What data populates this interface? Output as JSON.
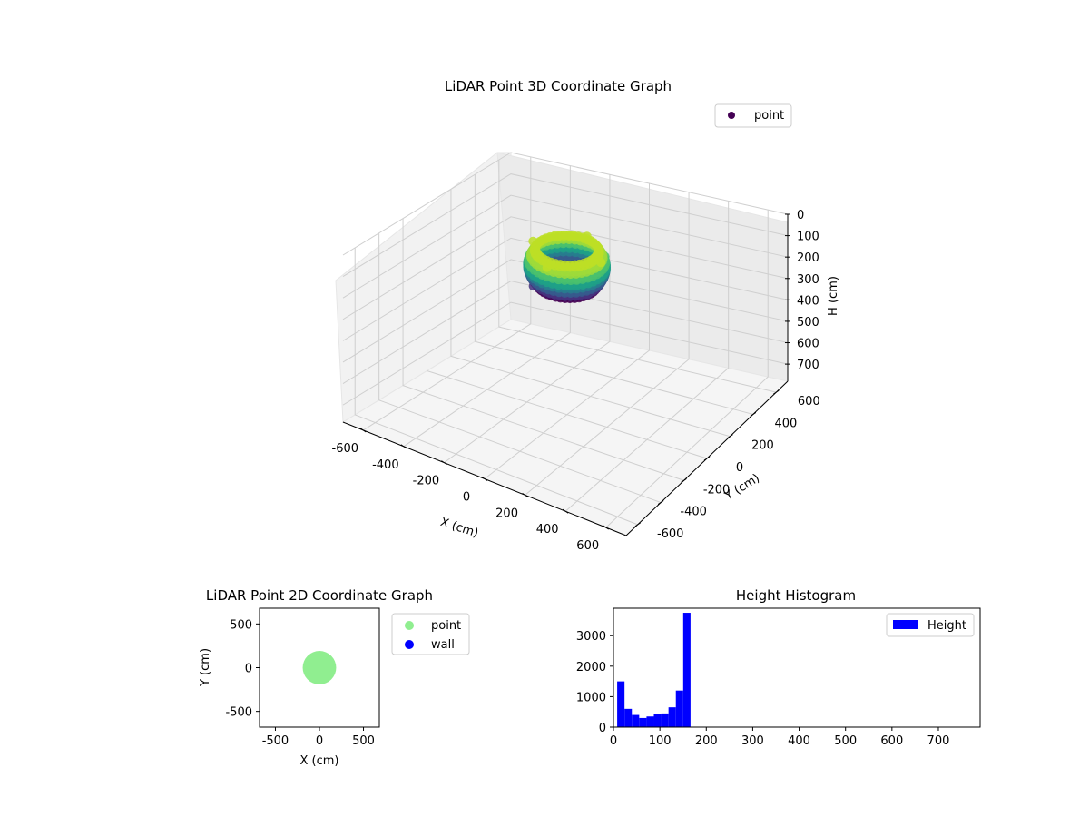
{
  "chart_data": [
    {
      "type": "scatter",
      "projection": "3d",
      "title": "LiDAR Point 3D Coordinate Graph",
      "xlabel": "X (cm)",
      "ylabel": "Y (cm)",
      "zlabel": "H (cm)",
      "xlim": [
        -700,
        700
      ],
      "ylim": [
        -700,
        700
      ],
      "zlim": [
        780,
        0
      ],
      "zlim_inverted": true,
      "xticks": [
        -600,
        -400,
        -200,
        0,
        200,
        400,
        600
      ],
      "yticks": [
        -600,
        -400,
        -200,
        0,
        200,
        400,
        600
      ],
      "zticks": [
        0,
        100,
        200,
        300,
        400,
        500,
        600,
        700
      ],
      "colormap": "viridis",
      "grid": true,
      "legend_position": "upper-right",
      "series": [
        {
          "name": "point",
          "color": "#440154",
          "description_of_shape": "ring-shaped cloud centered near origin, radius about 170 cm, heights 10-175 cm",
          "ring_radius": 170,
          "points": [
            {
              "x": 170,
              "y": 0,
              "h": 20
            },
            {
              "x": 0,
              "y": 170,
              "h": 20
            },
            {
              "x": -170,
              "y": 0,
              "h": 20
            },
            {
              "x": 0,
              "y": -170,
              "h": 20
            },
            {
              "x": 120,
              "y": 120,
              "h": 60
            },
            {
              "x": -120,
              "y": 120,
              "h": 60
            },
            {
              "x": -120,
              "y": -120,
              "h": 60
            },
            {
              "x": 120,
              "y": -120,
              "h": 60
            },
            {
              "x": 160,
              "y": 50,
              "h": 100
            },
            {
              "x": -50,
              "y": 160,
              "h": 100
            },
            {
              "x": -160,
              "y": -50,
              "h": 100
            },
            {
              "x": 50,
              "y": -160,
              "h": 100
            },
            {
              "x": 150,
              "y": -80,
              "h": 140
            },
            {
              "x": 80,
              "y": 150,
              "h": 140
            },
            {
              "x": -150,
              "y": 80,
              "h": 140
            },
            {
              "x": -80,
              "y": -150,
              "h": 140
            },
            {
              "x": 100,
              "y": 0,
              "h": 170
            },
            {
              "x": 0,
              "y": 100,
              "h": 170
            },
            {
              "x": -100,
              "y": 0,
              "h": 170
            },
            {
              "x": 0,
              "y": -100,
              "h": 170
            },
            {
              "x": 70,
              "y": 70,
              "h": 170
            },
            {
              "x": -70,
              "y": 70,
              "h": 170
            },
            {
              "x": -70,
              "y": -70,
              "h": 170
            },
            {
              "x": 70,
              "y": -70,
              "h": 170
            }
          ]
        }
      ]
    },
    {
      "type": "scatter",
      "title": "LiDAR Point 2D Coordinate Graph",
      "xlabel": "X (cm)",
      "ylabel": "Y (cm)",
      "xlim": [
        -680,
        680
      ],
      "ylim": [
        -680,
        680
      ],
      "xticks": [
        -500,
        0,
        500
      ],
      "yticks": [
        -500,
        0,
        500
      ],
      "grid": false,
      "legend_position": "outside-right",
      "series": [
        {
          "name": "point",
          "color": "#90ee90",
          "description_of_shape": "filled disk centered at origin, radius about 190 cm",
          "center": [
            0,
            0
          ],
          "radius": 190
        },
        {
          "name": "wall",
          "color": "#0000ff",
          "points": []
        }
      ]
    },
    {
      "type": "bar",
      "subtype": "histogram",
      "title": "Height Histogram",
      "xlabel": "",
      "ylabel": "",
      "xlim": [
        0,
        790
      ],
      "ylim": [
        0,
        3900
      ],
      "xticks": [
        0,
        100,
        200,
        300,
        400,
        500,
        600,
        700
      ],
      "yticks": [
        0,
        1000,
        2000,
        3000
      ],
      "grid": false,
      "legend_position": "upper-right",
      "series": [
        {
          "name": "Height",
          "color": "#0000ff",
          "bin_width": 15.8,
          "bin_edges_start": 8,
          "values": [
            1500,
            600,
            400,
            300,
            350,
            420,
            450,
            650,
            1200,
            3750
          ]
        }
      ]
    }
  ]
}
